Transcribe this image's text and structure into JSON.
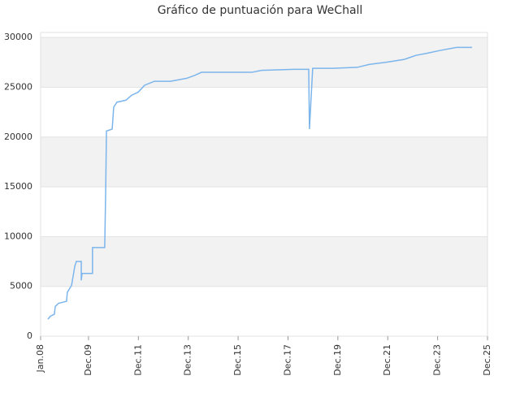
{
  "chart_data": {
    "type": "line",
    "title": "Gráfico de puntuación para WeChall",
    "x": [
      2008.29,
      2008.39,
      2008.55,
      2008.59,
      2008.72,
      2009.04,
      2009.07,
      2009.24,
      2009.37,
      2009.43,
      2009.63,
      2009.63,
      2009.66,
      2010.08,
      2010.08,
      2010.57,
      2010.61,
      2010.64,
      2010.87,
      2010.93,
      2011.06,
      2011.42,
      2011.65,
      2011.91,
      2012.17,
      2012.56,
      2013.21,
      2013.86,
      2014.19,
      2014.45,
      2016.47,
      2016.86,
      2018.16,
      2018.75,
      2018.78,
      2018.91,
      2019.73,
      2020.7,
      2021.19,
      2021.84,
      2022.59,
      2023.05,
      2023.47,
      2024.03,
      2024.68,
      2025.3
    ],
    "values": [
      1700,
      2000,
      2200,
      3000,
      3300,
      3500,
      4400,
      5100,
      7000,
      7500,
      7500,
      5600,
      6300,
      6300,
      8900,
      8900,
      14800,
      20600,
      20800,
      23000,
      23500,
      23700,
      24200,
      24500,
      25200,
      25600,
      25600,
      25900,
      26200,
      26500,
      26500,
      26700,
      26800,
      26800,
      20800,
      26900,
      26900,
      27000,
      27300,
      27500,
      27800,
      28200,
      28400,
      28700,
      29000,
      29000
    ],
    "color": "#7cb5ec",
    "xlim": [
      2008,
      2025.92
    ],
    "xticks": [
      {
        "value": 2008,
        "label": "Jan.08"
      },
      {
        "value": 2009.92,
        "label": "Dec.09"
      },
      {
        "value": 2011.92,
        "label": "Dec.11"
      },
      {
        "value": 2013.92,
        "label": "Dec.13"
      },
      {
        "value": 2015.92,
        "label": "Dec.15"
      },
      {
        "value": 2017.92,
        "label": "Dec.17"
      },
      {
        "value": 2019.92,
        "label": "Dec.19"
      },
      {
        "value": 2021.92,
        "label": "Dec.21"
      },
      {
        "value": 2023.92,
        "label": "Dec.23"
      },
      {
        "value": 2025.92,
        "label": "Dec.25"
      }
    ],
    "ylim": [
      0,
      30500
    ],
    "yticks": [
      0,
      5000,
      10000,
      15000,
      20000,
      25000,
      30000
    ],
    "grid": true
  }
}
